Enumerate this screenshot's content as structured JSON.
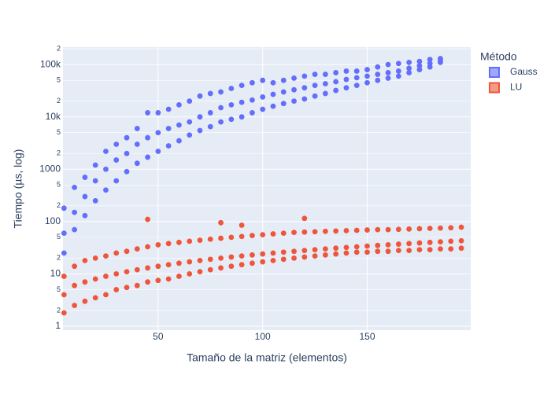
{
  "chart_data": {
    "type": "scatter",
    "x_label": "Tamaño de la matriz (elementos)",
    "y_label": "Tiempo (µs, log)",
    "legend_title": "Método",
    "legend_position": "right",
    "yscale": "log",
    "grid": true,
    "xlim": [
      4.5,
      199.5
    ],
    "ylim": [
      0.84,
      215000
    ],
    "xticks": [
      50,
      100,
      150
    ],
    "yticks": [
      1,
      2,
      5,
      10,
      {
        "value": 20,
        "label": "2"
      },
      {
        "value": 50,
        "label": "5"
      },
      100,
      {
        "value": 200,
        "label": "2"
      },
      {
        "value": 500,
        "label": "5"
      },
      1000,
      {
        "value": 2000,
        "label": "2"
      },
      {
        "value": 5000,
        "label": "5"
      },
      {
        "value": 10000,
        "label": "10k"
      },
      {
        "value": 20000,
        "label": "2"
      },
      {
        "value": 50000,
        "label": "5"
      },
      {
        "value": 100000,
        "label": "100k"
      },
      {
        "value": 200000,
        "label": "2"
      }
    ],
    "series": [
      {
        "name": "Gauss",
        "color": "#636efa",
        "x": [
          5,
          5,
          5,
          10,
          10,
          10,
          15,
          15,
          15,
          20,
          20,
          20,
          25,
          25,
          25,
          30,
          30,
          30,
          35,
          35,
          35,
          40,
          40,
          40,
          45,
          45,
          45,
          50,
          50,
          50,
          55,
          55,
          55,
          60,
          60,
          60,
          65,
          65,
          65,
          70,
          70,
          70,
          75,
          75,
          75,
          80,
          80,
          80,
          85,
          85,
          85,
          90,
          90,
          90,
          95,
          95,
          95,
          100,
          100,
          100,
          105,
          105,
          105,
          110,
          110,
          110,
          115,
          115,
          115,
          120,
          120,
          120,
          125,
          125,
          125,
          130,
          130,
          130,
          135,
          135,
          135,
          140,
          140,
          140,
          145,
          145,
          145,
          150,
          150,
          150,
          155,
          155,
          155,
          160,
          160,
          160,
          165,
          165,
          165,
          170,
          170,
          170,
          175,
          175,
          175,
          180,
          180,
          180,
          185,
          185,
          185
        ],
        "values": [
          25,
          60,
          180,
          70,
          150,
          450,
          130,
          300,
          700,
          250,
          600,
          1200,
          400,
          1000,
          2200,
          600,
          1500,
          3000,
          900,
          2000,
          4000,
          1300,
          3000,
          6000,
          1700,
          4000,
          12000,
          2200,
          5000,
          12000,
          2800,
          6000,
          14000,
          3500,
          7000,
          17000,
          4500,
          8000,
          20000,
          5500,
          10000,
          25000,
          6500,
          12000,
          28000,
          8000,
          15000,
          30000,
          9000,
          17000,
          35000,
          10000,
          19000,
          40000,
          12000,
          21000,
          45000,
          14000,
          24000,
          50000,
          16000,
          27000,
          45000,
          18000,
          30000,
          50000,
          20000,
          33000,
          55000,
          22000,
          36000,
          60000,
          25000,
          40000,
          65000,
          28000,
          43000,
          65000,
          32000,
          47000,
          70000,
          36000,
          52000,
          75000,
          40000,
          56000,
          75000,
          45000,
          60000,
          80000,
          50000,
          65000,
          90000,
          55000,
          70000,
          100000,
          60000,
          75000,
          105000,
          70000,
          85000,
          110000,
          80000,
          95000,
          115000,
          90000,
          105000,
          125000,
          110000,
          120000,
          130000
        ]
      },
      {
        "name": "LU",
        "color": "#ef553b",
        "x": [
          5,
          5,
          5,
          10,
          10,
          10,
          15,
          15,
          15,
          20,
          20,
          20,
          25,
          25,
          25,
          30,
          30,
          30,
          35,
          35,
          35,
          40,
          40,
          40,
          45,
          45,
          45,
          50,
          50,
          50,
          55,
          55,
          55,
          60,
          60,
          60,
          65,
          65,
          65,
          70,
          70,
          70,
          75,
          75,
          75,
          80,
          80,
          80,
          85,
          85,
          85,
          90,
          90,
          90,
          95,
          95,
          95,
          100,
          100,
          100,
          105,
          105,
          105,
          110,
          110,
          110,
          115,
          115,
          115,
          120,
          120,
          120,
          125,
          125,
          125,
          130,
          130,
          130,
          135,
          135,
          135,
          140,
          140,
          140,
          145,
          145,
          145,
          150,
          150,
          150,
          155,
          155,
          155,
          160,
          160,
          160,
          165,
          165,
          165,
          170,
          170,
          170,
          175,
          175,
          175,
          180,
          180,
          180,
          185,
          185,
          185,
          190,
          190,
          190,
          195,
          195,
          195,
          45,
          80,
          90,
          120
        ],
        "values": [
          1.8,
          4,
          9,
          2.5,
          6,
          14,
          3,
          7,
          18,
          3.5,
          8,
          20,
          4,
          9,
          22,
          5,
          10,
          25,
          5.5,
          11,
          27,
          6,
          12,
          30,
          7,
          13,
          33,
          7.5,
          14,
          36,
          8,
          15,
          38,
          9,
          16,
          40,
          10,
          17,
          42,
          11,
          18,
          44,
          12,
          19,
          46,
          13,
          20,
          48,
          14,
          21,
          50,
          15,
          22,
          52,
          16,
          23,
          54,
          17,
          24,
          56,
          18,
          25,
          58,
          19,
          26,
          60,
          20,
          27,
          62,
          21,
          28,
          63,
          22,
          29,
          64,
          23,
          30,
          65,
          24,
          31,
          66,
          25,
          32,
          67,
          26,
          33,
          68,
          26,
          34,
          69,
          27,
          35,
          70,
          27,
          36,
          70,
          28,
          37,
          71,
          28,
          38,
          72,
          29,
          39,
          73,
          29,
          40,
          74,
          30,
          41,
          75,
          30,
          42,
          76,
          31,
          43,
          78,
          110,
          95,
          85,
          115
        ]
      }
    ]
  }
}
